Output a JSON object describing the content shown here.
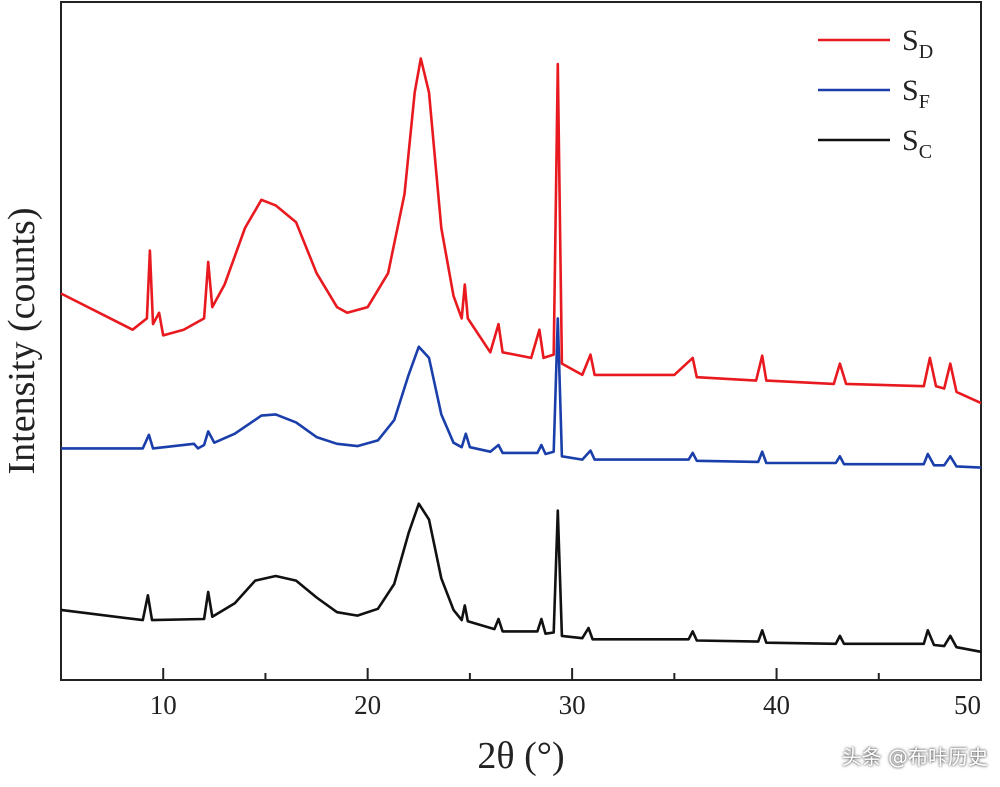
{
  "chart_data": {
    "type": "line",
    "xlabel": "2θ (°)",
    "ylabel": "Intensity (counts)",
    "xlim": [
      5,
      50
    ],
    "x_ticks": [
      10,
      20,
      30,
      40,
      50
    ],
    "y_ticks_shown": false,
    "legend_placement": "top-right",
    "series": [
      {
        "name": "S",
        "subscript": "D",
        "color": "#e8191f",
        "points": [
          [
            5,
            34.2
          ],
          [
            8.5,
            31
          ],
          [
            9.2,
            32
          ],
          [
            9.35,
            38
          ],
          [
            9.5,
            31.5
          ],
          [
            9.8,
            32.5
          ],
          [
            10,
            30.5
          ],
          [
            11,
            31
          ],
          [
            12,
            32
          ],
          [
            12.2,
            37
          ],
          [
            12.4,
            33
          ],
          [
            13,
            35
          ],
          [
            14,
            40
          ],
          [
            14.8,
            42.5
          ],
          [
            15.5,
            42
          ],
          [
            16.5,
            40.5
          ],
          [
            17.5,
            36
          ],
          [
            18.5,
            33
          ],
          [
            19,
            32.5
          ],
          [
            20,
            33
          ],
          [
            21,
            36
          ],
          [
            21.8,
            43
          ],
          [
            22.3,
            52
          ],
          [
            22.6,
            55
          ],
          [
            23,
            52
          ],
          [
            23.6,
            40
          ],
          [
            24.2,
            34
          ],
          [
            24.6,
            32
          ],
          [
            24.75,
            35
          ],
          [
            24.9,
            32
          ],
          [
            26,
            29
          ],
          [
            26.4,
            31.5
          ],
          [
            26.6,
            29
          ],
          [
            28,
            28.5
          ],
          [
            28.4,
            31
          ],
          [
            28.6,
            28.5
          ],
          [
            29.1,
            28.8
          ],
          [
            29.3,
            54.5
          ],
          [
            29.5,
            28
          ],
          [
            30.5,
            27
          ],
          [
            30.9,
            28.8
          ],
          [
            31.1,
            27
          ],
          [
            35,
            27
          ],
          [
            35.9,
            28.5
          ],
          [
            36.1,
            26.8
          ],
          [
            39,
            26.5
          ],
          [
            39.3,
            28.7
          ],
          [
            39.5,
            26.5
          ],
          [
            42.8,
            26.2
          ],
          [
            43.1,
            28
          ],
          [
            43.4,
            26.2
          ],
          [
            47.2,
            26
          ],
          [
            47.5,
            28.5
          ],
          [
            47.8,
            26
          ],
          [
            48.2,
            25.8
          ],
          [
            48.5,
            28
          ],
          [
            48.8,
            25.5
          ],
          [
            50,
            24.5
          ]
        ]
      },
      {
        "name": "S",
        "subscript": "F",
        "color": "#1a3faa",
        "points": [
          [
            5,
            20.5
          ],
          [
            9,
            20.5
          ],
          [
            9.3,
            21.7
          ],
          [
            9.5,
            20.5
          ],
          [
            11.5,
            20.9
          ],
          [
            11.7,
            20.5
          ],
          [
            12,
            20.8
          ],
          [
            12.2,
            22
          ],
          [
            12.5,
            21
          ],
          [
            13.5,
            21.8
          ],
          [
            14.8,
            23.4
          ],
          [
            15.5,
            23.5
          ],
          [
            16.5,
            22.8
          ],
          [
            17.5,
            21.5
          ],
          [
            18.5,
            20.9
          ],
          [
            19.5,
            20.7
          ],
          [
            20.5,
            21.2
          ],
          [
            21.3,
            23
          ],
          [
            22,
            27
          ],
          [
            22.5,
            29.5
          ],
          [
            23,
            28.5
          ],
          [
            23.6,
            23.5
          ],
          [
            24.2,
            21
          ],
          [
            24.6,
            20.6
          ],
          [
            24.8,
            21.8
          ],
          [
            25,
            20.6
          ],
          [
            26,
            20.2
          ],
          [
            26.4,
            20.8
          ],
          [
            26.6,
            20.1
          ],
          [
            28.3,
            20.1
          ],
          [
            28.5,
            20.8
          ],
          [
            28.7,
            20
          ],
          [
            29.1,
            20.2
          ],
          [
            29.3,
            32
          ],
          [
            29.5,
            19.8
          ],
          [
            30.5,
            19.5
          ],
          [
            30.9,
            20.3
          ],
          [
            31.1,
            19.5
          ],
          [
            35.7,
            19.5
          ],
          [
            35.9,
            20.1
          ],
          [
            36.1,
            19.4
          ],
          [
            39.1,
            19.3
          ],
          [
            39.3,
            20.2
          ],
          [
            39.5,
            19.2
          ],
          [
            42.9,
            19.2
          ],
          [
            43.1,
            19.8
          ],
          [
            43.3,
            19.1
          ],
          [
            47.2,
            19.1
          ],
          [
            47.4,
            20
          ],
          [
            47.7,
            19
          ],
          [
            48.2,
            19
          ],
          [
            48.5,
            19.8
          ],
          [
            48.8,
            18.9
          ],
          [
            50,
            18.8
          ]
        ]
      },
      {
        "name": "S",
        "subscript": "C",
        "color": "#111111",
        "points": [
          [
            5,
            6.2
          ],
          [
            9,
            5.3
          ],
          [
            9.25,
            7.5
          ],
          [
            9.45,
            5.3
          ],
          [
            12,
            5.4
          ],
          [
            12.2,
            7.8
          ],
          [
            12.4,
            5.6
          ],
          [
            13.5,
            6.8
          ],
          [
            14.5,
            8.8
          ],
          [
            15.5,
            9.2
          ],
          [
            16.5,
            8.8
          ],
          [
            17.5,
            7.3
          ],
          [
            18.5,
            6
          ],
          [
            19.5,
            5.7
          ],
          [
            20.5,
            6.3
          ],
          [
            21.3,
            8.5
          ],
          [
            22,
            13
          ],
          [
            22.5,
            15.6
          ],
          [
            23,
            14.2
          ],
          [
            23.6,
            9
          ],
          [
            24.2,
            6.2
          ],
          [
            24.6,
            5.3
          ],
          [
            24.75,
            6.6
          ],
          [
            24.9,
            5.2
          ],
          [
            26.2,
            4.5
          ],
          [
            26.4,
            5.4
          ],
          [
            26.6,
            4.3
          ],
          [
            28.3,
            4.3
          ],
          [
            28.5,
            5.4
          ],
          [
            28.7,
            4.1
          ],
          [
            29.1,
            4.2
          ],
          [
            29.3,
            15
          ],
          [
            29.5,
            3.9
          ],
          [
            30.5,
            3.7
          ],
          [
            30.8,
            4.6
          ],
          [
            31,
            3.6
          ],
          [
            35.7,
            3.6
          ],
          [
            35.9,
            4.3
          ],
          [
            36.1,
            3.5
          ],
          [
            39.1,
            3.4
          ],
          [
            39.3,
            4.4
          ],
          [
            39.5,
            3.3
          ],
          [
            42.9,
            3.2
          ],
          [
            43.1,
            3.9
          ],
          [
            43.3,
            3.2
          ],
          [
            47.2,
            3.2
          ],
          [
            47.4,
            4.4
          ],
          [
            47.7,
            3.1
          ],
          [
            48.2,
            3
          ],
          [
            48.5,
            3.9
          ],
          [
            48.8,
            2.9
          ],
          [
            50,
            2.5
          ]
        ]
      }
    ]
  },
  "watermark": "头条 @布咔历史"
}
